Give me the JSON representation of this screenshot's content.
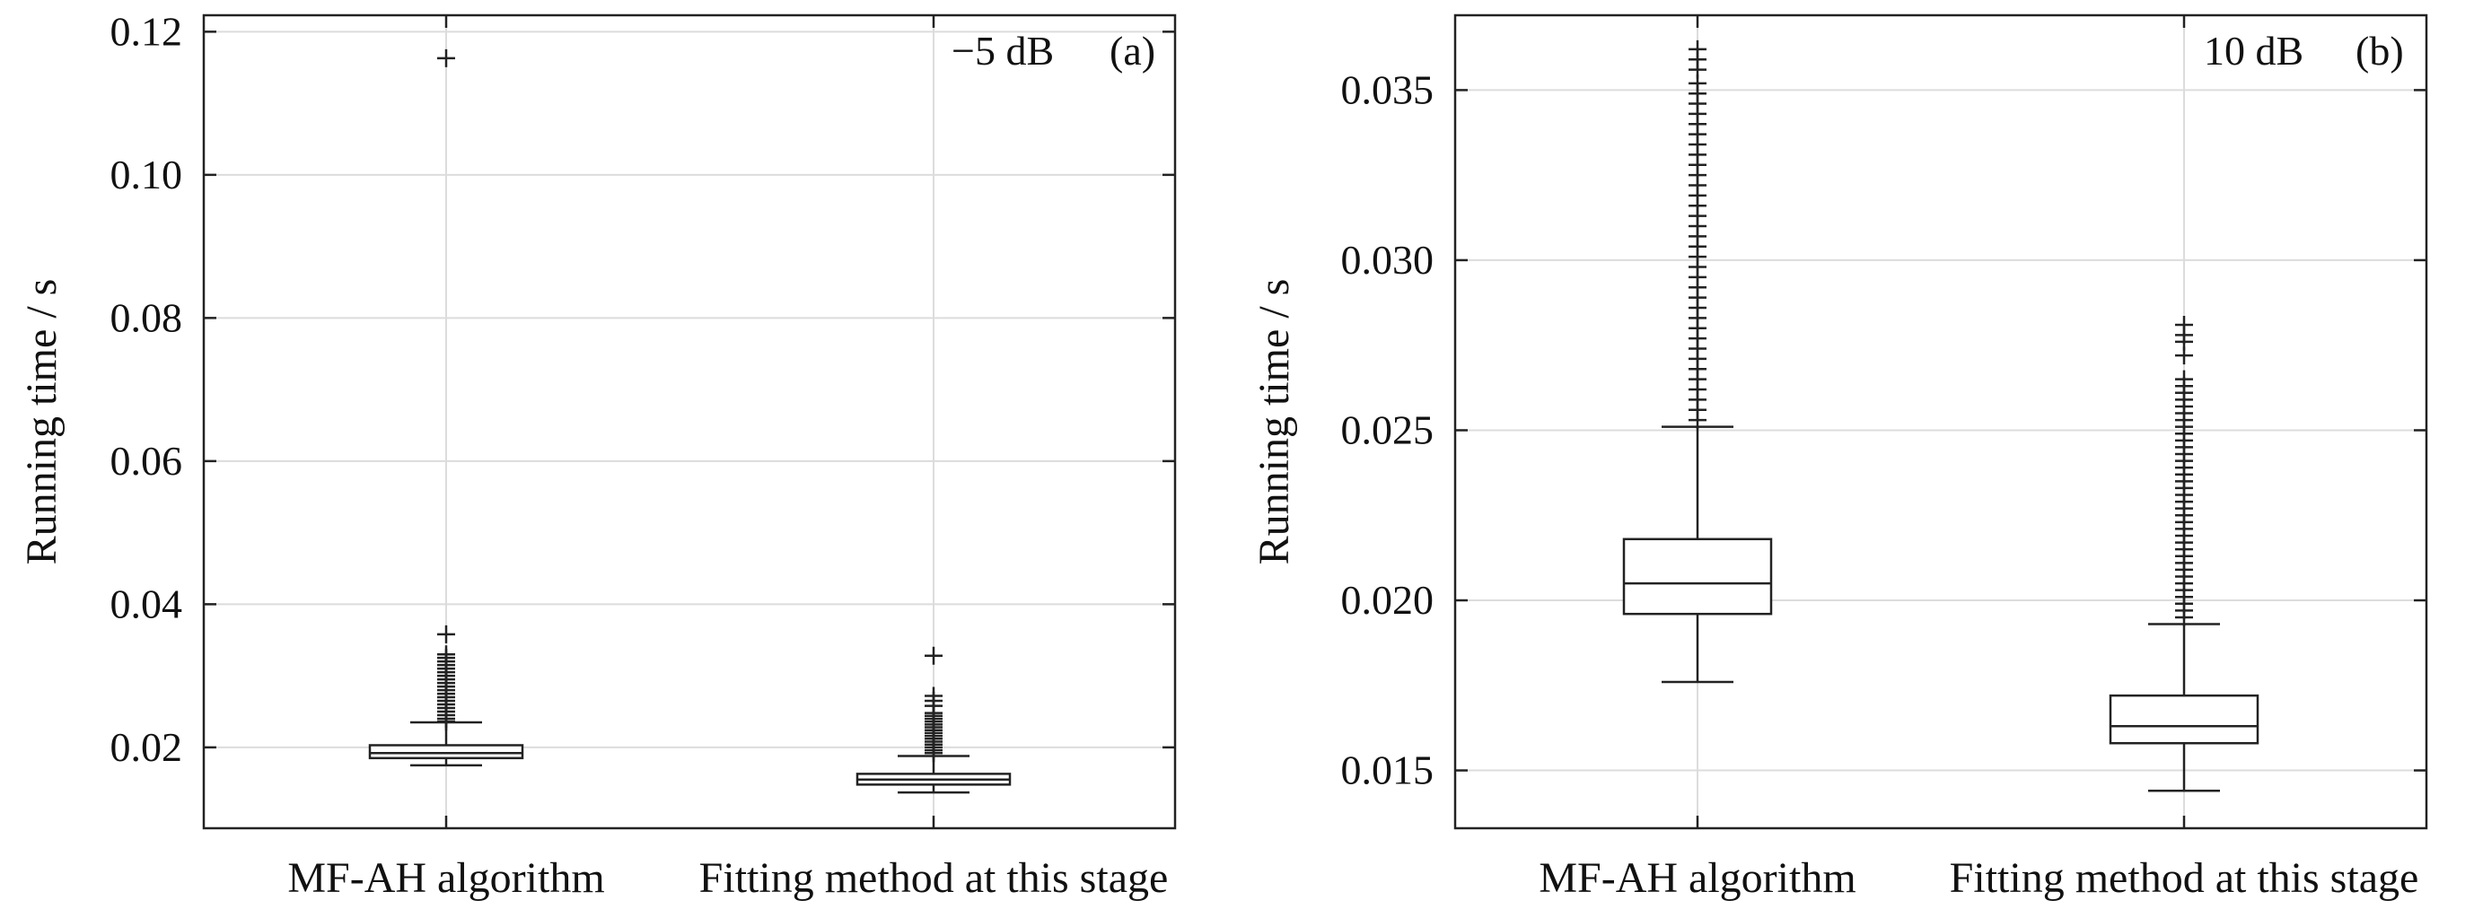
{
  "chart_data": [
    {
      "type": "box",
      "annotation": "−5 dB",
      "panel_label": "(a)",
      "ylabel": "Running time / s",
      "xlabel": "",
      "ylim": [
        0.0087,
        0.1223
      ],
      "yticks": [
        0.02,
        0.04,
        0.06,
        0.08,
        0.1,
        0.12
      ],
      "ytick_labels": [
        "0.02",
        "0.04",
        "0.06",
        "0.08",
        "0.10",
        "0.12"
      ],
      "grid": true,
      "categories": [
        "MF-AH algorithm",
        "Fitting method at this stage"
      ],
      "boxes": [
        {
          "name": "MF-AH algorithm",
          "q1": 0.0185,
          "median": 0.0192,
          "q3": 0.0203,
          "whisker_low": 0.0175,
          "whisker_high": 0.0235,
          "outliers": [
            0.0236,
            0.024,
            0.0245,
            0.025,
            0.0255,
            0.026,
            0.0265,
            0.027,
            0.0275,
            0.028,
            0.0285,
            0.029,
            0.0295,
            0.03,
            0.0305,
            0.031,
            0.0315,
            0.032,
            0.0325,
            0.033,
            0.0358,
            0.1163
          ]
        },
        {
          "name": "Fitting method at this stage",
          "q1": 0.0148,
          "median": 0.0155,
          "q3": 0.0163,
          "whisker_low": 0.0137,
          "whisker_high": 0.0188,
          "outliers": [
            0.0192,
            0.0196,
            0.02,
            0.0204,
            0.0208,
            0.0212,
            0.0216,
            0.022,
            0.0224,
            0.0228,
            0.0232,
            0.0236,
            0.024,
            0.0244,
            0.0248,
            0.0258,
            0.0265,
            0.0272,
            0.0328
          ]
        }
      ]
    },
    {
      "type": "box",
      "annotation": "10 dB",
      "panel_label": "(b)",
      "ylabel": "Running time / s",
      "xlabel": "",
      "ylim": [
        0.0133,
        0.0372
      ],
      "yticks": [
        0.015,
        0.02,
        0.025,
        0.03,
        0.035
      ],
      "ytick_labels": [
        "0.015",
        "0.020",
        "0.025",
        "0.030",
        "0.035"
      ],
      "grid": true,
      "categories": [
        "MF-AH algorithm",
        "Fitting method at this stage"
      ],
      "boxes": [
        {
          "name": "MF-AH algorithm",
          "q1": 0.0196,
          "median": 0.0205,
          "q3": 0.0218,
          "whisker_low": 0.0176,
          "whisker_high": 0.0251,
          "outliers": [
            0.0253,
            0.0256,
            0.0259,
            0.0262,
            0.0265,
            0.0268,
            0.0271,
            0.0274,
            0.0277,
            0.028,
            0.0283,
            0.0286,
            0.0289,
            0.0292,
            0.0295,
            0.0298,
            0.0301,
            0.0304,
            0.0307,
            0.031,
            0.0313,
            0.0316,
            0.0319,
            0.0322,
            0.0325,
            0.0328,
            0.0331,
            0.0334,
            0.0337,
            0.034,
            0.0343,
            0.0346,
            0.0349,
            0.0352,
            0.0356,
            0.0359,
            0.0362
          ]
        },
        {
          "name": "Fitting method at this stage",
          "q1": 0.0158,
          "median": 0.0163,
          "q3": 0.0172,
          "whisker_low": 0.0144,
          "whisker_high": 0.0193,
          "outliers": [
            0.0195,
            0.0197,
            0.0199,
            0.0201,
            0.0203,
            0.0205,
            0.0207,
            0.0209,
            0.0211,
            0.0213,
            0.0215,
            0.0217,
            0.0219,
            0.0221,
            0.0223,
            0.0225,
            0.0227,
            0.0229,
            0.0231,
            0.0233,
            0.0235,
            0.0237,
            0.0239,
            0.0241,
            0.0243,
            0.0245,
            0.0247,
            0.0249,
            0.0251,
            0.0253,
            0.0255,
            0.0257,
            0.0259,
            0.0261,
            0.0263,
            0.0265,
            0.0272,
            0.0276,
            0.0278,
            0.0281
          ]
        }
      ]
    }
  ]
}
